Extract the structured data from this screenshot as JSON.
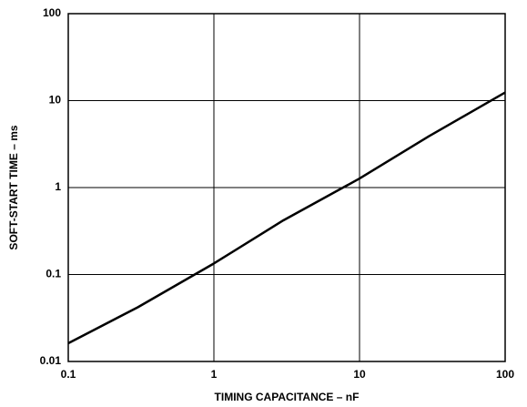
{
  "chart_data": {
    "type": "line",
    "x_label": "TIMING CAPACITANCE – nF",
    "y_label": "SOFT-START TIME – ms",
    "x": [
      0.1,
      0.3,
      1,
      3,
      10,
      30,
      100
    ],
    "values": [
      0.0162,
      0.042,
      0.134,
      0.42,
      1.27,
      3.9,
      12.4
    ],
    "color": "#000000",
    "xlim": [
      0.1,
      100
    ],
    "ylim": [
      0.01,
      100
    ],
    "xticks": [
      0.1,
      1,
      10,
      100
    ],
    "yticks": [
      0.01,
      0.1,
      1,
      10,
      100
    ],
    "xscale": "log",
    "yscale": "log",
    "grid": true
  }
}
